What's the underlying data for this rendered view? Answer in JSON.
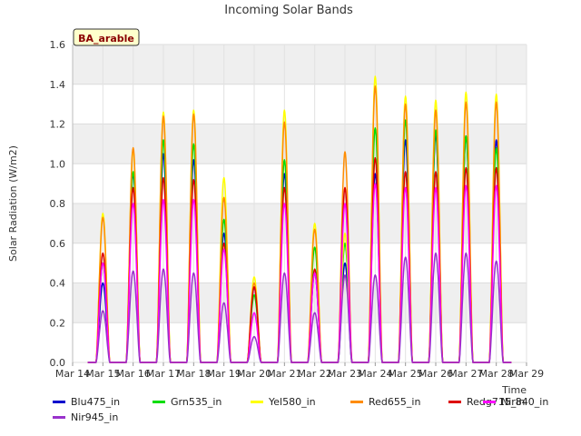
{
  "chart_data": {
    "type": "line",
    "title": "Incoming Solar Bands",
    "badge": "BA_arable",
    "xlabel": "Time",
    "ylabel": "Solar Radiation (W/m2)",
    "ylim": [
      0,
      1.6
    ],
    "yticks": [
      "0.0",
      "0.2",
      "0.4",
      "0.6",
      "0.8",
      "1.0",
      "1.2",
      "1.4",
      "1.6"
    ],
    "xticks": [
      "Mar 14",
      "Mar 15",
      "Mar 16",
      "Mar 17",
      "Mar 18",
      "Mar 19",
      "Mar 20",
      "Mar 21",
      "Mar 22",
      "Mar 23",
      "Mar 24",
      "Mar 25",
      "Mar 26",
      "Mar 27",
      "Mar 28",
      "Mar 29"
    ],
    "grid": true,
    "legend_position": "bottom",
    "day_labels": [
      "Mar 15",
      "Mar 16",
      "Mar 17",
      "Mar 18",
      "Mar 19",
      "Mar 20",
      "Mar 21",
      "Mar 22",
      "Mar 23",
      "Mar 24",
      "Mar 25",
      "Mar 26",
      "Mar 27",
      "Mar 28"
    ],
    "series": [
      {
        "name": "Blu475_in",
        "color": "#0000cc",
        "daily_peaks": [
          0.4,
          0.95,
          1.05,
          1.02,
          0.65,
          0.38,
          0.95,
          0.45,
          0.5,
          0.95,
          1.12,
          1.15,
          1.14,
          1.12
        ]
      },
      {
        "name": "Grn535_in",
        "color": "#00dd00",
        "daily_peaks": [
          0.5,
          0.96,
          1.12,
          1.1,
          0.72,
          0.34,
          1.02,
          0.58,
          0.6,
          1.18,
          1.22,
          1.17,
          1.14,
          1.08
        ]
      },
      {
        "name": "Yel580_in",
        "color": "#ffff00",
        "daily_peaks": [
          0.75,
          1.07,
          1.26,
          1.27,
          0.93,
          0.43,
          1.27,
          0.7,
          0.65,
          1.44,
          1.34,
          1.32,
          1.36,
          1.35
        ]
      },
      {
        "name": "Red655_in",
        "color": "#ff8c00",
        "daily_peaks": [
          0.73,
          1.08,
          1.24,
          1.25,
          0.83,
          0.4,
          1.21,
          0.67,
          1.06,
          1.39,
          1.3,
          1.27,
          1.31,
          1.31
        ]
      },
      {
        "name": "Redg715_in",
        "color": "#dd0000",
        "daily_peaks": [
          0.55,
          0.88,
          0.93,
          0.92,
          0.6,
          0.38,
          0.88,
          0.47,
          0.88,
          1.03,
          0.96,
          0.96,
          0.98,
          0.98
        ]
      },
      {
        "name": "Nir840_in",
        "color": "#ff00ff",
        "daily_peaks": [
          0.5,
          0.8,
          0.82,
          0.82,
          0.57,
          0.25,
          0.8,
          0.45,
          0.8,
          0.9,
          0.88,
          0.88,
          0.89,
          0.89
        ]
      },
      {
        "name": "Nir945_in",
        "color": "#9932cc",
        "daily_peaks": [
          0.26,
          0.46,
          0.47,
          0.45,
          0.3,
          0.13,
          0.45,
          0.25,
          0.44,
          0.44,
          0.53,
          0.55,
          0.55,
          0.51
        ]
      }
    ]
  }
}
